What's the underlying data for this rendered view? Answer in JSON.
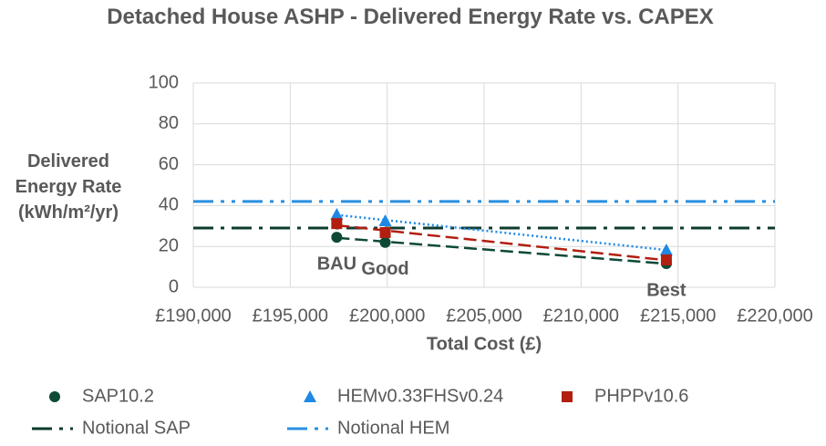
{
  "chart_data": {
    "type": "scatter",
    "title": "Detached House ASHP - Delivered Energy Rate vs. CAPEX",
    "x_label": "Total Cost (£)",
    "y_label": "Delivered Energy Rate (kWh/m²/yr)",
    "xlim": [
      190000,
      220000
    ],
    "xticks": [
      {
        "value": 190000,
        "label": "£190,000"
      },
      {
        "value": 195000,
        "label": "£195,000"
      },
      {
        "value": 200000,
        "label": "£200,000"
      },
      {
        "value": 205000,
        "label": "£205,000"
      },
      {
        "value": 210000,
        "label": "£210,000"
      },
      {
        "value": 215000,
        "label": "£215,000"
      },
      {
        "value": 220000,
        "label": "£220,000"
      }
    ],
    "ylim": [
      0,
      100
    ],
    "yticks": [
      0,
      20,
      40,
      60,
      80,
      100
    ],
    "grid": true,
    "point_labels": [
      "BAU",
      "Good",
      "Best"
    ],
    "series": [
      {
        "name": "SAP10.2",
        "color": "#0d4a36",
        "marker": "circle",
        "trend": "dashed",
        "x": [
          197400,
          199900,
          214400
        ],
        "values": [
          24.5,
          22,
          11.6
        ]
      },
      {
        "name": "HEMv0.33FHSv0.24",
        "color": "#1e88e5",
        "marker": "triangle",
        "trend": "dotted",
        "x": [
          197400,
          199900,
          214400
        ],
        "values": [
          35.7,
          32.6,
          18.3
        ]
      },
      {
        "name": "PHPPv10.6",
        "color": "#b21e10",
        "marker": "square",
        "trend": "dashed",
        "x": [
          197400,
          199900,
          214400
        ],
        "values": [
          31.2,
          26.8,
          13.4
        ]
      }
    ],
    "reference_lines": [
      {
        "name": "Notional SAP",
        "color": "#0d3b2e",
        "dash": "dashdot",
        "value": 29
      },
      {
        "name": "Notional HEM",
        "color": "#2a8fe0",
        "dash": "dashdotdot",
        "value": 42
      }
    ]
  }
}
